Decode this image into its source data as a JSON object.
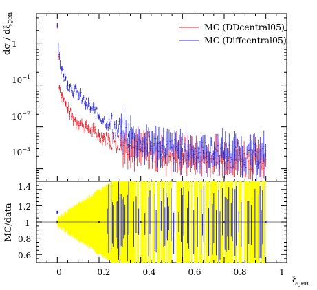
{
  "chart_data": [
    {
      "type": "scatter",
      "panel": "main",
      "ylabel": "dσ / dξ_gen",
      "yscale": "log",
      "ylim": [
        0.0005,
        5
      ],
      "xlim": [
        -0.1,
        1.1
      ],
      "y_tick_labels": [
        "1",
        "10^-1",
        "10^-2",
        "10^-3"
      ],
      "legend_position": "top-right",
      "series": [
        {
          "name": "MC (DDcentral05)",
          "color": "#e8202a",
          "x": [
            0.0,
            0.01,
            0.02,
            0.03,
            0.04,
            0.05,
            0.06,
            0.07,
            0.08,
            0.09,
            0.1,
            0.12,
            0.14,
            0.16,
            0.18,
            0.2,
            0.22,
            0.25,
            0.28,
            0.31,
            0.34,
            0.37,
            0.4,
            0.45,
            0.5,
            0.55,
            0.6,
            0.65,
            0.7,
            0.75,
            0.8,
            0.85,
            0.9,
            0.95,
            0.99
          ],
          "y": [
            2.5,
            0.09,
            0.06,
            0.045,
            0.035,
            0.027,
            0.021,
            0.018,
            0.016,
            0.014,
            0.013,
            0.011,
            0.01,
            0.0085,
            0.0075,
            0.0065,
            0.0058,
            0.005,
            0.0045,
            0.004,
            0.0035,
            0.003,
            0.0028,
            0.0025,
            0.0023,
            0.0022,
            0.0021,
            0.002,
            0.0019,
            0.0018,
            0.0018,
            0.0017,
            0.0017,
            0.0016,
            0.0016
          ]
        },
        {
          "name": "MC (Diffcentral05)",
          "color": "#2a2ad8",
          "x": [
            0.0,
            0.01,
            0.02,
            0.03,
            0.04,
            0.05,
            0.06,
            0.07,
            0.08,
            0.09,
            0.1,
            0.12,
            0.14,
            0.16,
            0.18,
            0.2,
            0.22,
            0.25,
            0.28,
            0.31,
            0.34,
            0.37,
            0.4,
            0.45,
            0.5,
            0.55,
            0.6,
            0.65,
            0.7,
            0.75,
            0.8,
            0.85,
            0.9,
            0.95,
            0.99
          ],
          "y": [
            2.7,
            0.45,
            0.25,
            0.17,
            0.14,
            0.11,
            0.095,
            0.085,
            0.075,
            0.065,
            0.058,
            0.045,
            0.035,
            0.028,
            0.023,
            0.018,
            0.015,
            0.012,
            0.009,
            0.0075,
            0.0062,
            0.0052,
            0.0045,
            0.0038,
            0.0033,
            0.003,
            0.0028,
            0.0026,
            0.0025,
            0.0024,
            0.0023,
            0.0022,
            0.0022,
            0.0021,
            0.002
          ]
        }
      ]
    },
    {
      "type": "scatter",
      "panel": "ratio",
      "xlabel": "ξ_gen",
      "ylabel": "MC/data",
      "ylim": [
        0.5,
        1.5
      ],
      "xlim": [
        -0.1,
        1.1
      ],
      "x_tick_labels": [
        "0",
        "0.2",
        "0.4",
        "0.6",
        "0.8",
        "1"
      ],
      "y_tick_labels": [
        "0.6",
        "0.8",
        "1",
        "1.2",
        "1.4"
      ],
      "reference_line": 1.0,
      "band_color": "#ffff00",
      "series": [
        {
          "name": "MC (DDcentral05)",
          "color": "#e8202a",
          "x": [
            0.0,
            0.2,
            0.4,
            0.6,
            0.8,
            1.0
          ],
          "y": [
            1.0,
            1.0,
            1.0,
            1.0,
            1.0,
            1.0
          ]
        },
        {
          "name": "MC (Diffcentral05)",
          "color": "#2a2ad8",
          "x": [
            0.0,
            0.2,
            0.4,
            0.6,
            0.8,
            1.0
          ],
          "y": [
            1.0,
            1.0,
            1.0,
            1.0,
            1.0,
            1.0
          ]
        }
      ]
    }
  ],
  "main_ylabel": "dσ / dξ",
  "main_ylabel_sub": "gen",
  "xlabel_main": "ξ",
  "xlabel_sub": "gen",
  "ratio_ylabel": "MC/data",
  "ytick_one": "1",
  "ytick_base": "10",
  "ytick_exp1": "−1",
  "ytick_exp2": "−2",
  "ytick_exp3": "−3",
  "legend_1": "MC (DDcentral05)",
  "legend_2": "MC (Diffcentral05)"
}
